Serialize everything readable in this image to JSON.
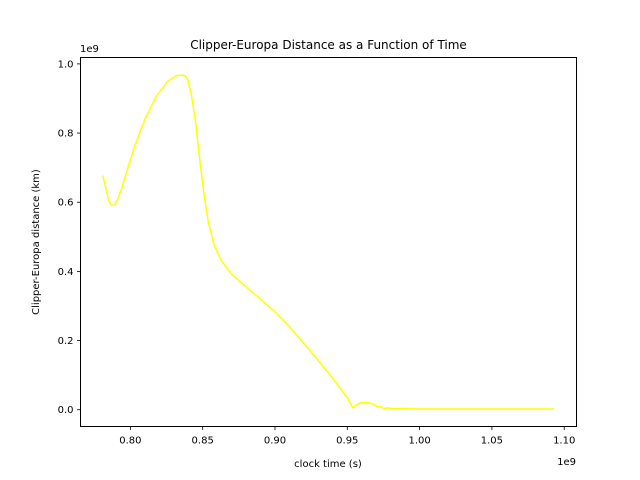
{
  "chart_data": {
    "type": "line",
    "title": "Clipper-Europa Distance as a Function of Time",
    "xlabel": "clock time (s)",
    "ylabel": "Clipper-Europa distance (km)",
    "x_offset_text": "1e9",
    "y_offset_text": "1e9",
    "xlim": [
      0.7655,
      1.1085
    ],
    "ylim": [
      -0.0485,
      1.0185
    ],
    "x_scale_label": "×1e9",
    "y_scale_label": "×1e9",
    "x_ticks": [
      0.8,
      0.85,
      0.9,
      0.95,
      1.0,
      1.05,
      1.1
    ],
    "x_tick_labels": [
      "0.80",
      "0.85",
      "0.90",
      "0.95",
      "1.00",
      "1.05",
      "1.10"
    ],
    "y_ticks": [
      0.0,
      0.2,
      0.4,
      0.6,
      0.8,
      1.0
    ],
    "y_tick_labels": [
      "0.0",
      "0.2",
      "0.4",
      "0.6",
      "0.8",
      "1.0"
    ],
    "grid": false,
    "legend": "none",
    "series": [
      {
        "color": "#ffff00",
        "x": [
          0.781,
          0.783,
          0.785,
          0.787,
          0.789,
          0.791,
          0.794,
          0.798,
          0.803,
          0.81,
          0.818,
          0.826,
          0.832,
          0.836,
          0.838,
          0.84,
          0.842,
          0.845,
          0.848,
          0.851,
          0.854,
          0.858,
          0.863,
          0.87,
          0.88,
          0.89,
          0.9,
          0.91,
          0.92,
          0.93,
          0.94,
          0.95,
          0.954,
          0.956,
          0.959,
          0.962,
          0.965,
          0.968,
          0.971,
          0.973,
          0.975,
          0.978,
          0.982,
          0.99,
          1.0,
          1.02,
          1.04,
          1.06,
          1.08,
          1.093
        ],
        "y": [
          0.677,
          0.64,
          0.605,
          0.59,
          0.592,
          0.607,
          0.64,
          0.696,
          0.762,
          0.84,
          0.907,
          0.951,
          0.966,
          0.968,
          0.965,
          0.95,
          0.915,
          0.835,
          0.722,
          0.62,
          0.54,
          0.475,
          0.43,
          0.392,
          0.355,
          0.32,
          0.283,
          0.24,
          0.192,
          0.142,
          0.09,
          0.035,
          0.005,
          0.013,
          0.02,
          0.021,
          0.02,
          0.016,
          0.008,
          0.009,
          0.004,
          0.005,
          0.003,
          0.003,
          0.002,
          0.002,
          0.002,
          0.002,
          0.002,
          0.002
        ]
      }
    ]
  }
}
